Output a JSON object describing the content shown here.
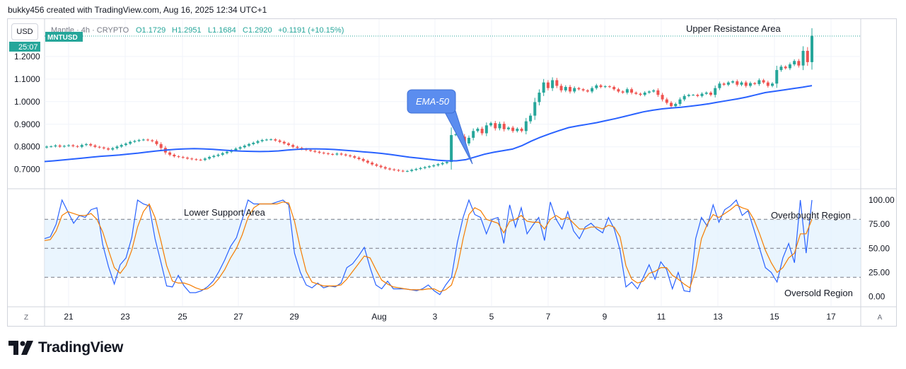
{
  "attribution": "bukky456 created with TradingView.com, Aug 16, 2025 12:34 UTC+1",
  "currency_button": "USD",
  "legend": {
    "name": "Mantle · 4h · CRYPTO",
    "open": "O1.1729",
    "high": "H1.2951",
    "low": "L1.1684",
    "close": "C1.2920",
    "change": "+0.1191 (+10.15%)"
  },
  "symbol_tag": "MNTUSD",
  "countdown": "25:07",
  "brand": "TradingView",
  "corner_left": "Z",
  "corner_right": "A",
  "colors": {
    "up": "#26a69a",
    "down": "#ef5350",
    "ema": "#2962ff",
    "stoch_k": "#2962ff",
    "stoch_d": "#f57c00",
    "band_fill": "#e3f2fd",
    "callout_bg": "#5b8def"
  },
  "icons": {
    "brand_logo": "tradingview-logo-icon"
  },
  "chart_data": [
    {
      "type": "candlestick",
      "symbol": "MNTUSD",
      "timeframe": "4h",
      "ylim": [
        0.64,
        1.3
      ],
      "y_ticks": [
        "1.2000",
        "1.1000",
        "1.0000",
        "0.9000",
        "0.8000",
        "0.7000"
      ],
      "x_tick_labels": [
        "21",
        "23",
        "25",
        "27",
        "29",
        "Aug",
        "3",
        "5",
        "7",
        "9",
        "11",
        "13",
        "15",
        "17"
      ],
      "grid": true,
      "last_close": 1.292,
      "candles_close": [
        0.801,
        0.802,
        0.806,
        0.801,
        0.804,
        0.807,
        0.803,
        0.8,
        0.808,
        0.812,
        0.806,
        0.8,
        0.797,
        0.793,
        0.788,
        0.794,
        0.801,
        0.808,
        0.814,
        0.822,
        0.826,
        0.83,
        0.832,
        0.829,
        0.825,
        0.812,
        0.795,
        0.775,
        0.765,
        0.758,
        0.755,
        0.752,
        0.748,
        0.745,
        0.743,
        0.742,
        0.748,
        0.755,
        0.76,
        0.765,
        0.772,
        0.778,
        0.785,
        0.792,
        0.798,
        0.805,
        0.812,
        0.818,
        0.825,
        0.83,
        0.832,
        0.833,
        0.828,
        0.822,
        0.815,
        0.808,
        0.8,
        0.795,
        0.79,
        0.786,
        0.782,
        0.778,
        0.774,
        0.771,
        0.768,
        0.766,
        0.77,
        0.766,
        0.762,
        0.758,
        0.752,
        0.746,
        0.738,
        0.73,
        0.722,
        0.716,
        0.71,
        0.704,
        0.7,
        0.697,
        0.694,
        0.692,
        0.693,
        0.698,
        0.702,
        0.706,
        0.71,
        0.714,
        0.718,
        0.723,
        0.728,
        0.733,
        0.852,
        0.855,
        0.845,
        0.815,
        0.84,
        0.87,
        0.88,
        0.86,
        0.895,
        0.905,
        0.882,
        0.902,
        0.878,
        0.885,
        0.87,
        0.88,
        0.87,
        0.913,
        0.938,
        0.998,
        1.04,
        1.085,
        1.06,
        1.095,
        1.07,
        1.05,
        1.065,
        1.045,
        1.06,
        1.055,
        1.05,
        1.045,
        1.06,
        1.072,
        1.065,
        1.068,
        1.065,
        1.055,
        1.045,
        1.04,
        1.055,
        1.04,
        1.035,
        1.03,
        1.04,
        1.045,
        1.05,
        1.03,
        1.01,
        0.995,
        0.98,
        0.99,
        1.01,
        1.025,
        1.03,
        1.03,
        1.025,
        1.035,
        1.04,
        1.03,
        1.06,
        1.08,
        1.075,
        1.085,
        1.09,
        1.075,
        1.085,
        1.07,
        1.082,
        1.078,
        1.095,
        1.085,
        1.07,
        1.08,
        1.14,
        1.155,
        1.148,
        1.165,
        1.18,
        1.16,
        1.225,
        1.175,
        1.292
      ],
      "ema50": {
        "name": "EMA-50",
        "values": [
          0.735,
          0.738,
          0.742,
          0.746,
          0.75,
          0.754,
          0.758,
          0.761,
          0.764,
          0.768,
          0.772,
          0.777,
          0.782,
          0.786,
          0.789,
          0.791,
          0.792,
          0.791,
          0.789,
          0.786,
          0.783,
          0.781,
          0.78,
          0.779,
          0.78,
          0.782,
          0.786,
          0.789,
          0.791,
          0.791,
          0.79,
          0.788,
          0.785,
          0.782,
          0.778,
          0.775,
          0.771,
          0.766,
          0.76,
          0.754,
          0.75,
          0.745,
          0.741,
          0.738,
          0.738,
          0.743,
          0.755,
          0.767,
          0.776,
          0.783,
          0.79,
          0.805,
          0.825,
          0.843,
          0.858,
          0.872,
          0.885,
          0.893,
          0.9,
          0.907,
          0.916,
          0.925,
          0.935,
          0.945,
          0.955,
          0.962,
          0.968,
          0.972,
          0.975,
          0.98,
          0.985,
          0.991,
          0.998,
          1.005,
          1.012,
          1.02,
          1.03,
          1.04,
          1.046,
          1.052,
          1.058,
          1.064,
          1.071
        ]
      }
    },
    {
      "type": "line",
      "name": "Stochastic RSI",
      "ylim": [
        -3,
        103
      ],
      "y_ticks": [
        "100.00",
        "75.00",
        "50.00",
        "25.00",
        "0.00"
      ],
      "bands": [
        20,
        50,
        80
      ],
      "series": [
        {
          "name": "K",
          "values": [
            60,
            62,
            75,
            100,
            88,
            76,
            84,
            82,
            90,
            92,
            54,
            31,
            13,
            33,
            40,
            61,
            100,
            96,
            94,
            60,
            36,
            11,
            10,
            22,
            11,
            4,
            4,
            6,
            10,
            16,
            26,
            38,
            52,
            61,
            80,
            100,
            96,
            96,
            96,
            96,
            98,
            100,
            95,
            45,
            25,
            12,
            9,
            14,
            9,
            11,
            10,
            14,
            30,
            34,
            42,
            51,
            30,
            12,
            8,
            16,
            8,
            8,
            8,
            7,
            6,
            8,
            12,
            6,
            2,
            12,
            20,
            56,
            82,
            100,
            85,
            82,
            65,
            80,
            82,
            55,
            95,
            72,
            92,
            65,
            74,
            82,
            58,
            98,
            80,
            70,
            88,
            68,
            60,
            72,
            76,
            70,
            66,
            82,
            70,
            48,
            10,
            15,
            8,
            20,
            33,
            18,
            36,
            28,
            8,
            25,
            6,
            5,
            60,
            82,
            73,
            95,
            77,
            90,
            94,
            100,
            84,
            89,
            70,
            50,
            30,
            25,
            15,
            40,
            55,
            35,
            100,
            45,
            100
          ]
        },
        {
          "name": "D",
          "values": [
            58,
            59,
            68,
            84,
            88,
            86,
            84,
            84,
            86,
            80,
            67,
            48,
            30,
            24,
            32,
            48,
            72,
            88,
            96,
            82,
            58,
            32,
            16,
            14,
            14,
            12,
            9,
            7,
            8,
            12,
            19,
            28,
            40,
            50,
            64,
            82,
            92,
            96,
            96,
            96,
            96,
            98,
            97,
            78,
            50,
            26,
            15,
            13,
            11,
            11,
            11,
            12,
            18,
            26,
            34,
            42,
            40,
            28,
            17,
            13,
            10,
            9,
            8,
            7,
            7,
            7,
            8,
            8,
            5,
            7,
            12,
            30,
            60,
            85,
            92,
            89,
            80,
            78,
            76,
            66,
            78,
            80,
            84,
            78,
            77,
            77,
            70,
            80,
            84,
            80,
            82,
            76,
            70,
            70,
            72,
            72,
            70,
            74,
            72,
            62,
            32,
            18,
            14,
            16,
            24,
            26,
            30,
            30,
            22,
            18,
            13,
            9,
            28,
            60,
            75,
            85,
            82,
            86,
            90,
            95,
            92,
            90,
            80,
            65,
            48,
            35,
            25,
            30,
            40,
            45,
            65,
            65,
            80
          ]
        }
      ]
    }
  ],
  "annotations": {
    "upper_resistance": "Upper Resistance Area",
    "lower_support": "Lower Support Area",
    "overbought": "Overbought Region",
    "oversold": "Oversold Region",
    "ema_callout": "EMA-50"
  }
}
